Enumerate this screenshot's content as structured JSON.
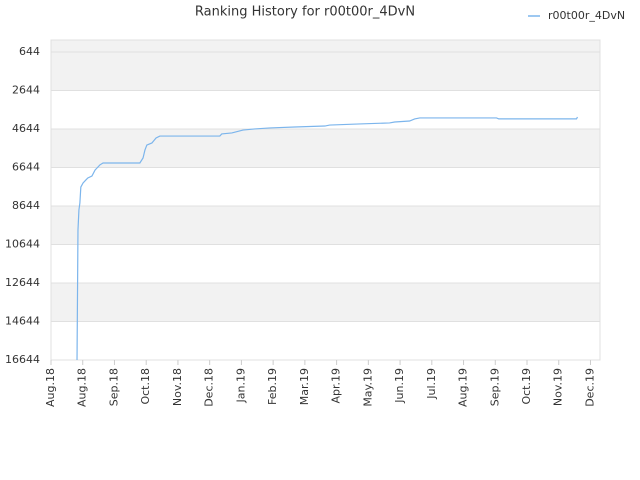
{
  "chart_data": {
    "type": "line",
    "title": "Ranking History for r00t00r_4DvN",
    "x": [
      0.82,
      0.85,
      0.88,
      0.91,
      0.94,
      1.01,
      1.1,
      1.16,
      1.29,
      1.39,
      1.45,
      1.54,
      1.64,
      2.8,
      2.9,
      2.96,
      3.02,
      3.18,
      3.31,
      3.43,
      5.32,
      5.38,
      5.7,
      6.05,
      6.42,
      6.9,
      7.68,
      8.63,
      8.78,
      9.73,
      10.67,
      10.83,
      11.3,
      11.46,
      11.62,
      14.04,
      14.11,
      16.56,
      16.59
    ],
    "series": [
      {
        "name": "r00t00r_4DvN",
        "color": "#7cb5ec",
        "values": [
          16644,
          9890,
          8850,
          8490,
          7660,
          7450,
          7290,
          7190,
          7090,
          6770,
          6670,
          6510,
          6410,
          6410,
          6150,
          5740,
          5480,
          5370,
          5110,
          5010,
          5010,
          4900,
          4850,
          4700,
          4640,
          4590,
          4540,
          4490,
          4440,
          4380,
          4330,
          4280,
          4230,
          4120,
          4070,
          4070,
          4120,
          4120,
          4020
        ]
      }
    ],
    "xlim": [
      0,
      17.3
    ],
    "xticks": [
      {
        "value": 0,
        "label": "Aug.18"
      },
      {
        "value": 1,
        "label": "Aug.18"
      },
      {
        "value": 2,
        "label": "Sep.18"
      },
      {
        "value": 3,
        "label": "Oct.18"
      },
      {
        "value": 4,
        "label": "Nov.18"
      },
      {
        "value": 5,
        "label": "Dec.18"
      },
      {
        "value": 6,
        "label": "Jan.19"
      },
      {
        "value": 7,
        "label": "Feb.19"
      },
      {
        "value": 8,
        "label": "Mar.19"
      },
      {
        "value": 9,
        "label": "Apr.19"
      },
      {
        "value": 10,
        "label": "May.19"
      },
      {
        "value": 11,
        "label": "Jun.19"
      },
      {
        "value": 12,
        "label": "Jul.19"
      },
      {
        "value": 13,
        "label": "Aug.19"
      },
      {
        "value": 14,
        "label": "Sep.19"
      },
      {
        "value": 15,
        "label": "Oct.19"
      },
      {
        "value": 16,
        "label": "Nov.19"
      },
      {
        "value": 17,
        "label": "Dec.19"
      }
    ],
    "ylim": [
      16644,
      21
    ],
    "yticks": [
      644,
      2644,
      4644,
      6644,
      8644,
      10644,
      12644,
      14644,
      16644
    ],
    "grid": true,
    "legend": "top-right"
  }
}
